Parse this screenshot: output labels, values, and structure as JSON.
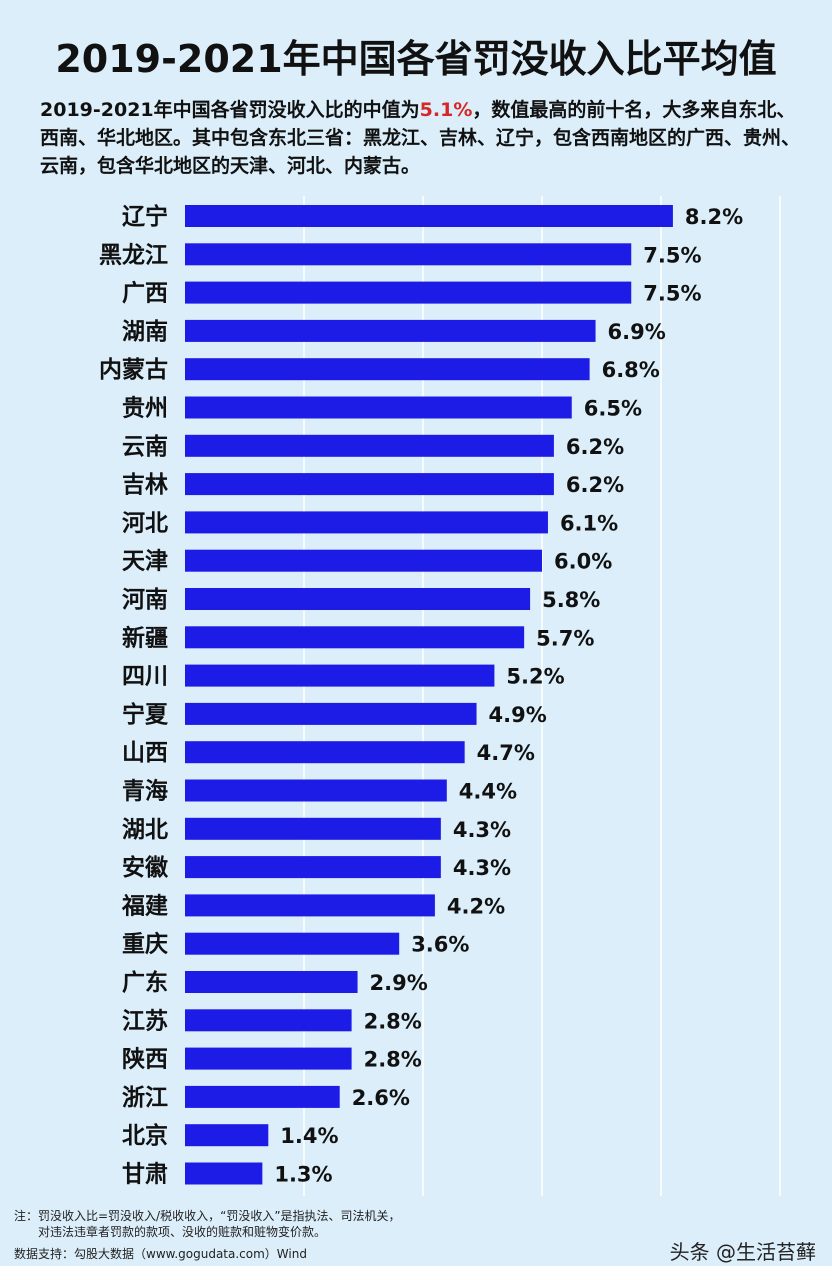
{
  "header": {
    "title": "2019-2021年中国各省罚没收入比平均值",
    "subtitle_part1": "2019-2021年中国各省罚没收入比的中值为",
    "subtitle_highlight": "5.1%",
    "subtitle_part2": "，数值最高的前十名，大多来自东北、西南、华北地区。其中包含东北三省：黑龙江、吉林、辽宁，包含西南地区的广西、贵州、云南，包含华北地区的天津、河北、内蒙古。",
    "highlight_color": "#d62626"
  },
  "chart_data": {
    "type": "bar",
    "orientation": "horizontal",
    "title": "2019-2021年中国各省罚没收入比平均值",
    "categories": [
      "辽宁",
      "黑龙江",
      "广西",
      "湖南",
      "内蒙古",
      "贵州",
      "云南",
      "吉林",
      "河北",
      "天津",
      "河南",
      "新疆",
      "四川",
      "宁夏",
      "山西",
      "青海",
      "湖北",
      "安徽",
      "福建",
      "重庆",
      "广东",
      "江苏",
      "陕西",
      "浙江",
      "北京",
      "甘肃"
    ],
    "values": [
      8.2,
      7.5,
      7.5,
      6.9,
      6.8,
      6.5,
      6.2,
      6.2,
      6.1,
      6.0,
      5.8,
      5.7,
      5.2,
      4.9,
      4.7,
      4.4,
      4.3,
      4.3,
      4.2,
      3.6,
      2.9,
      2.8,
      2.8,
      2.6,
      1.4,
      1.3
    ],
    "value_labels": [
      "8.2%",
      "7.5%",
      "7.5%",
      "6.9%",
      "6.8%",
      "6.5%",
      "6.2%",
      "6.2%",
      "6.1%",
      "6.0%",
      "5.8%",
      "5.7%",
      "5.2%",
      "4.9%",
      "4.7%",
      "4.4%",
      "4.3%",
      "4.3%",
      "4.2%",
      "3.6%",
      "2.9%",
      "2.8%",
      "2.8%",
      "2.6%",
      "1.4%",
      "1.3%"
    ],
    "xlim": [
      0,
      10
    ],
    "grid": true,
    "bar_color": "#1c1ce6",
    "grid_color": "#ffffff"
  },
  "footer": {
    "note_line1": "注：罚没收入比=罚没收入/税收收入，“罚没收入”是指执法、司法机关，",
    "note_line2": "对违法违章者罚款的款项、没收的赃款和赃物变价款。",
    "source": "数据支持：勾股大数据（www.gogudata.com）Wind",
    "signature": "头条 @生活苔藓"
  }
}
